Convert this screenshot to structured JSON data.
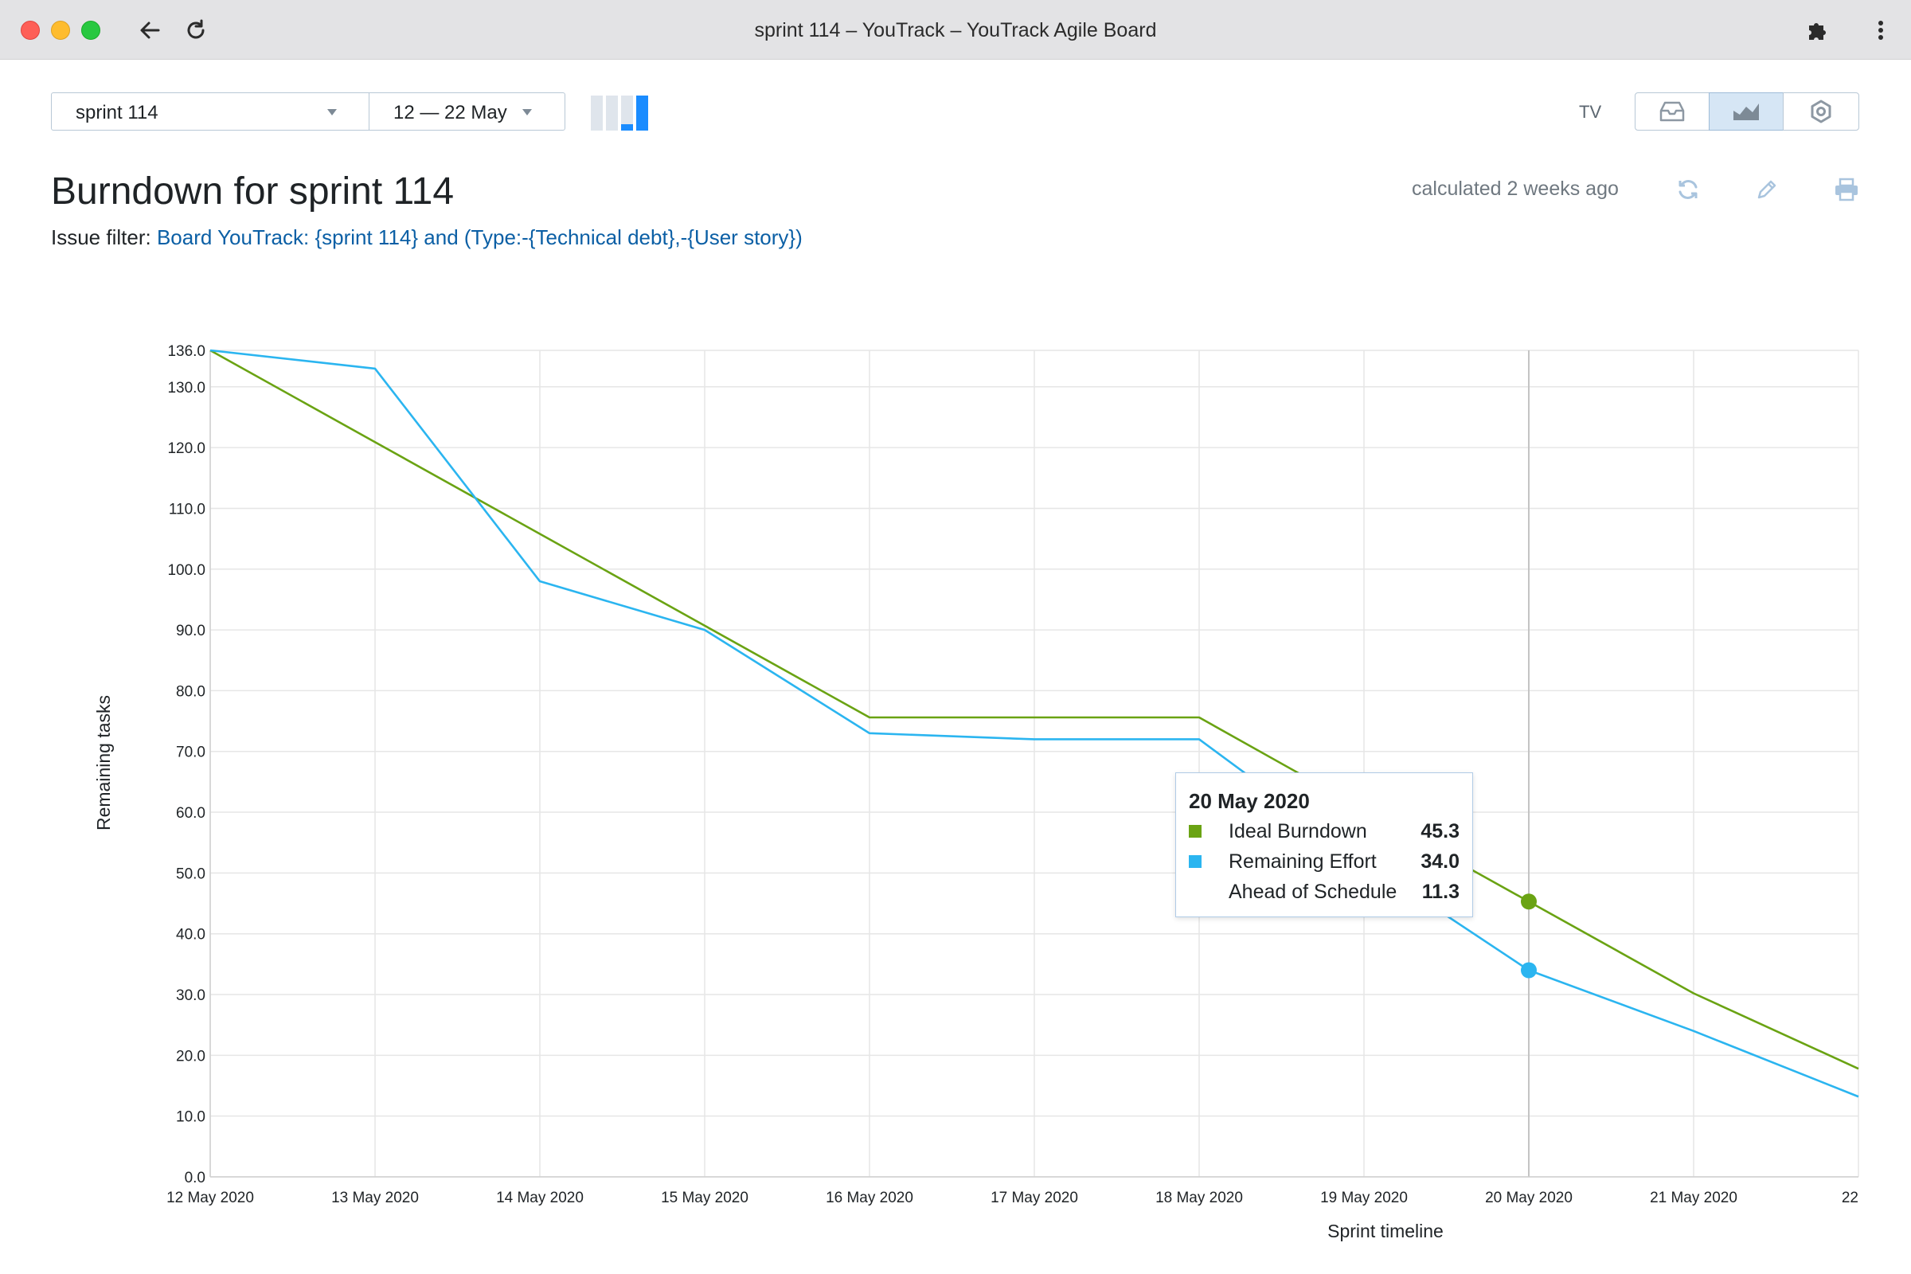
{
  "window": {
    "title": "sprint 114 – YouTrack – YouTrack Agile Board"
  },
  "toolbar": {
    "sprint": "sprint 114",
    "date_range": "12 — 22 May",
    "tv_label": "TV"
  },
  "header": {
    "title": "Burndown for sprint 114",
    "calculated": "calculated 2 weeks ago",
    "filter_label": "Issue filter:",
    "filter_value": "Board YouTrack: {sprint 114} and (Type:-{Technical debt},-{User story})"
  },
  "colors": {
    "ideal": "#6aa313",
    "remaining": "#2bb5f0",
    "grid": "#e6e6e6",
    "accent": "#1a8cff"
  },
  "icons": {
    "back": "back-arrow-icon",
    "reload": "reload-icon",
    "extensions": "puzzle-icon",
    "menu": "kebab-menu-icon",
    "refresh": "refresh-icon",
    "edit": "pencil-icon",
    "print": "printer-icon",
    "board": "inbox-icon",
    "report": "chart-icon",
    "settings": "gear-icon"
  },
  "chart_data": {
    "type": "line",
    "title": "Burndown for sprint 114",
    "xlabel": "Sprint timeline",
    "ylabel": "Remaining tasks",
    "x": [
      "12 May 2020",
      "13 May 2020",
      "14 May 2020",
      "15 May 2020",
      "16 May 2020",
      "17 May 2020",
      "18 May 2020",
      "19 May 2020",
      "20 May 2020",
      "21 May 2020",
      "22"
    ],
    "ylim": [
      0,
      136
    ],
    "yticks": [
      "0.0",
      "10.0",
      "20.0",
      "30.0",
      "40.0",
      "50.0",
      "60.0",
      "70.0",
      "80.0",
      "90.0",
      "100.0",
      "110.0",
      "120.0",
      "130.0",
      "136.0"
    ],
    "series": [
      {
        "name": "Ideal Burndown",
        "values": [
          136.0,
          120.9,
          105.8,
          90.7,
          75.6,
          75.6,
          75.6,
          60.4,
          45.3,
          30.2,
          17.8
        ]
      },
      {
        "name": "Remaining Effort",
        "values": [
          136.0,
          133.0,
          98.0,
          90.0,
          73.0,
          72.0,
          72.0,
          52.0,
          34.0,
          24.0,
          13.2
        ]
      }
    ],
    "highlight_index": 8,
    "grid": true,
    "tooltip": {
      "title": "20 May 2020",
      "rows": [
        {
          "label": "Ideal Burndown",
          "value": "45.3"
        },
        {
          "label": "Remaining Effort",
          "value": "34.0"
        },
        {
          "label": "Ahead of Schedule",
          "value": "11.3"
        }
      ]
    }
  }
}
